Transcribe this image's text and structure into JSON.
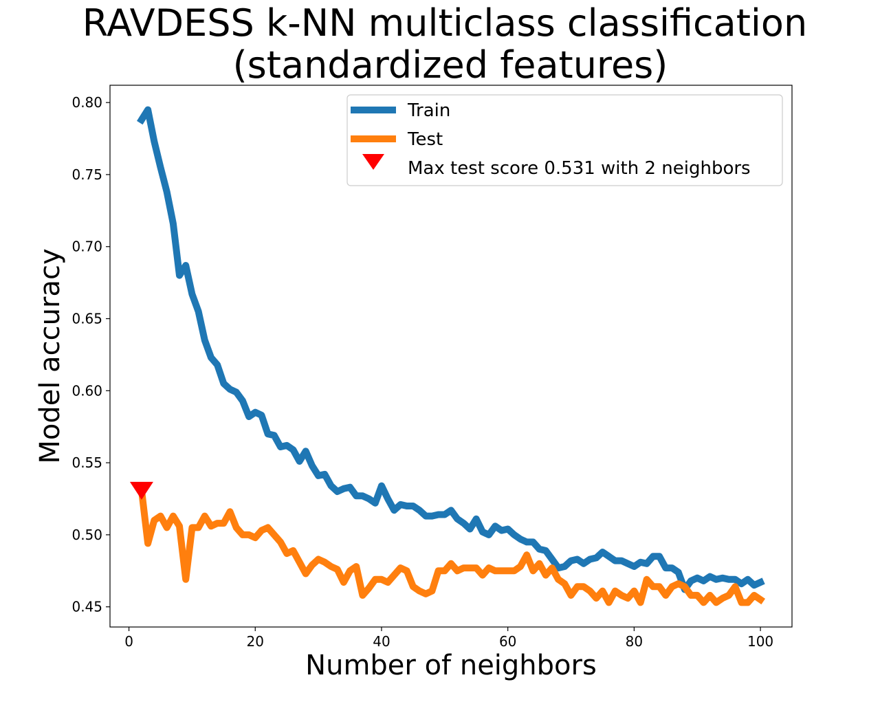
{
  "chart_data": {
    "type": "line",
    "title_lines": [
      "RAVDESS k-NN multiclass classification",
      "(standardized features)"
    ],
    "xlabel": "Number of neighbors",
    "ylabel": "Model accuracy",
    "xlim": [
      -3,
      105
    ],
    "ylim": [
      0.436,
      0.812
    ],
    "xticks": [
      0,
      20,
      40,
      60,
      80,
      100
    ],
    "xtick_labels": [
      "0",
      "20",
      "40",
      "60",
      "80",
      "100"
    ],
    "yticks": [
      0.45,
      0.5,
      0.55,
      0.6,
      0.65,
      0.7,
      0.75,
      0.8
    ],
    "ytick_labels": [
      "0.45",
      "0.50",
      "0.55",
      "0.60",
      "0.65",
      "0.70",
      "0.75",
      "0.80"
    ],
    "legend_position": "upper right",
    "series": [
      {
        "name": "Train",
        "color": "#1f77b4",
        "x": [
          2,
          3,
          4,
          5,
          6,
          7,
          8,
          9,
          10,
          11,
          12,
          13,
          14,
          15,
          16,
          17,
          18,
          19,
          20,
          21,
          22,
          23,
          24,
          25,
          26,
          27,
          28,
          29,
          30,
          31,
          32,
          33,
          34,
          35,
          36,
          37,
          38,
          39,
          40,
          41,
          42,
          43,
          44,
          45,
          46,
          47,
          48,
          49,
          50,
          51,
          52,
          53,
          54,
          55,
          56,
          57,
          58,
          59,
          60,
          61,
          62,
          63,
          64,
          65,
          66,
          67,
          68,
          69,
          70,
          71,
          72,
          73,
          74,
          75,
          76,
          77,
          78,
          79,
          80,
          81,
          82,
          83,
          84,
          85,
          86,
          87,
          88,
          89,
          90,
          91,
          92,
          93,
          94,
          95,
          96,
          97,
          98,
          99,
          100
        ],
        "values": [
          0.788,
          0.795,
          0.773,
          0.755,
          0.738,
          0.716,
          0.68,
          0.687,
          0.667,
          0.655,
          0.635,
          0.623,
          0.618,
          0.605,
          0.601,
          0.599,
          0.593,
          0.582,
          0.585,
          0.583,
          0.57,
          0.569,
          0.561,
          0.562,
          0.559,
          0.551,
          0.558,
          0.548,
          0.541,
          0.542,
          0.534,
          0.53,
          0.532,
          0.533,
          0.527,
          0.527,
          0.525,
          0.522,
          0.534,
          0.525,
          0.517,
          0.521,
          0.52,
          0.52,
          0.517,
          0.513,
          0.513,
          0.514,
          0.514,
          0.517,
          0.511,
          0.508,
          0.504,
          0.511,
          0.502,
          0.5,
          0.506,
          0.503,
          0.504,
          0.5,
          0.497,
          0.495,
          0.495,
          0.49,
          0.489,
          0.483,
          0.477,
          0.478,
          0.482,
          0.483,
          0.48,
          0.483,
          0.484,
          0.488,
          0.485,
          0.482,
          0.482,
          0.48,
          0.478,
          0.481,
          0.48,
          0.485,
          0.485,
          0.477,
          0.477,
          0.474,
          0.462,
          0.468,
          0.47,
          0.468,
          0.471,
          0.469,
          0.47,
          0.469,
          0.469,
          0.466,
          0.469,
          0.465,
          0.467
        ]
      },
      {
        "name": "Test",
        "color": "#ff7f0e",
        "x": [
          2,
          3,
          4,
          5,
          6,
          7,
          8,
          9,
          10,
          11,
          12,
          13,
          14,
          15,
          16,
          17,
          18,
          19,
          20,
          21,
          22,
          23,
          24,
          25,
          26,
          27,
          28,
          29,
          30,
          31,
          32,
          33,
          34,
          35,
          36,
          37,
          38,
          39,
          40,
          41,
          42,
          43,
          44,
          45,
          46,
          47,
          48,
          49,
          50,
          51,
          52,
          53,
          54,
          55,
          56,
          57,
          58,
          59,
          60,
          61,
          62,
          63,
          64,
          65,
          66,
          67,
          68,
          69,
          70,
          71,
          72,
          73,
          74,
          75,
          76,
          77,
          78,
          79,
          80,
          81,
          82,
          83,
          84,
          85,
          86,
          87,
          88,
          89,
          90,
          91,
          92,
          93,
          94,
          95,
          96,
          97,
          98,
          99,
          100
        ],
        "values": [
          0.531,
          0.494,
          0.51,
          0.513,
          0.505,
          0.513,
          0.506,
          0.469,
          0.505,
          0.505,
          0.513,
          0.506,
          0.508,
          0.508,
          0.516,
          0.505,
          0.5,
          0.5,
          0.498,
          0.503,
          0.505,
          0.5,
          0.495,
          0.487,
          0.489,
          0.481,
          0.473,
          0.479,
          0.483,
          0.481,
          0.478,
          0.476,
          0.467,
          0.475,
          0.478,
          0.458,
          0.463,
          0.469,
          0.469,
          0.467,
          0.472,
          0.477,
          0.475,
          0.464,
          0.461,
          0.459,
          0.461,
          0.475,
          0.475,
          0.48,
          0.475,
          0.477,
          0.477,
          0.477,
          0.472,
          0.477,
          0.475,
          0.475,
          0.475,
          0.475,
          0.478,
          0.486,
          0.475,
          0.48,
          0.472,
          0.477,
          0.469,
          0.466,
          0.458,
          0.464,
          0.464,
          0.461,
          0.456,
          0.461,
          0.453,
          0.461,
          0.458,
          0.456,
          0.461,
          0.453,
          0.469,
          0.464,
          0.464,
          0.458,
          0.464,
          0.466,
          0.464,
          0.458,
          0.458,
          0.453,
          0.458,
          0.453,
          0.456,
          0.458,
          0.464,
          0.453,
          0.453,
          0.458,
          0.455
        ]
      }
    ],
    "max_marker": {
      "label": "Max test score 0.531 with 2 neighbors",
      "x": 2,
      "y": 0.531,
      "color": "#ff0000"
    }
  }
}
